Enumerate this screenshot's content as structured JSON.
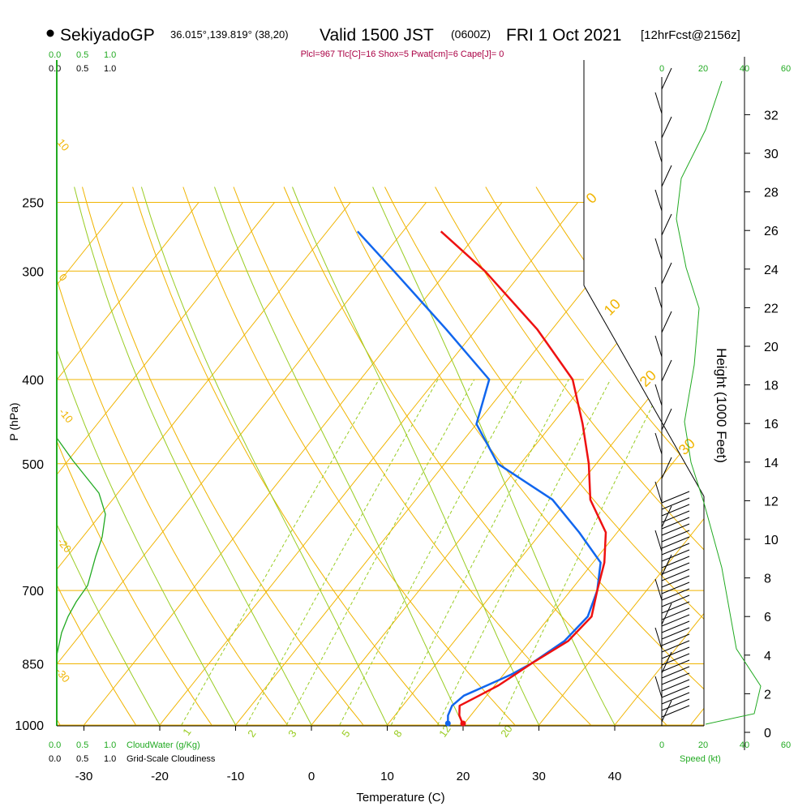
{
  "header": {
    "station": "SekiyadoGP",
    "coords": "36.015°,139.819° (38,20)",
    "valid": "Valid 1500 JST",
    "zulu": "(0600Z)",
    "date": "FRI 1 Oct 2021",
    "fcst": "[12hrFcst@2156z]",
    "indices": "Plcl=967 Tlc[C]=16 Shox=5 Pwat[cm]=6 Cape[J]= 0"
  },
  "colors": {
    "temperature": "#ee1111",
    "dewpoint": "#1166ee",
    "isotherm": "#f0b400",
    "dry_adiabat": "#f0b400",
    "moist_adiabat": "#99cc22",
    "mixing_ratio": "#99cc22",
    "cloud": "#22aa22",
    "indices": "#aa0044",
    "wind": "#000000"
  },
  "chart_data": {
    "type": "skew-t",
    "xlabel": "Temperature (C)",
    "ylabel": "P (hPa)",
    "right_axis_label": "Height (1000 Feet)",
    "x_ticks": [
      "-30",
      "-20",
      "-10",
      "0",
      "10",
      "20",
      "30",
      "40"
    ],
    "x_tick_values": [
      -30,
      -20,
      -10,
      0,
      10,
      20,
      30,
      40
    ],
    "p_ticks": [
      "250",
      "300",
      "400",
      "500",
      "700",
      "850",
      "1000"
    ],
    "p_tick_values": [
      250,
      300,
      400,
      500,
      700,
      850,
      1000
    ],
    "height_ticks": [
      "0",
      "2",
      "4",
      "6",
      "8",
      "10",
      "12",
      "14",
      "16",
      "18",
      "20",
      "22",
      "24",
      "26",
      "28",
      "30",
      "32"
    ],
    "height_tick_values": [
      0,
      2,
      4,
      6,
      8,
      10,
      12,
      14,
      16,
      18,
      20,
      22,
      24,
      26,
      28,
      30,
      32
    ],
    "pressure_hpa": [
      1000,
      975,
      950,
      925,
      900,
      875,
      850,
      800,
      750,
      700,
      650,
      600,
      550,
      500,
      450,
      400,
      350,
      300,
      270
    ],
    "temperature_c": [
      20,
      18.5,
      17.5,
      19,
      20.5,
      21.5,
      22.5,
      25,
      25.5,
      23.5,
      21.5,
      18.5,
      13,
      9,
      4,
      -2,
      -12,
      -25,
      -35
    ],
    "dewpoint_c": [
      18,
      17,
      16.5,
      17,
      19,
      21,
      22.5,
      24.5,
      25,
      23.5,
      21,
      15,
      8,
      -3,
      -10,
      -13,
      -24,
      -37,
      -46
    ],
    "cloud_water_axis_top": [
      "0.0",
      "0.5",
      "1.0"
    ],
    "cloud_water_axis_bottom": [
      "0.0",
      "0.5",
      "1.0"
    ],
    "cloud_water_label": "CloudWater (g/Kg)",
    "cloudiness_axis": [
      "0.0",
      "0.5",
      "1.0"
    ],
    "cloudiness_label": "Grid-Scale Cloudiness",
    "wind_speed_ticks": [
      "0",
      "20",
      "40",
      "60"
    ],
    "wind_speed_label": "Speed (kt)",
    "mixing_ratio_labels": [
      "1",
      "2",
      "3",
      "5",
      "8",
      "12",
      "20"
    ],
    "dry_adiabat_labels": [
      "10",
      "0",
      "-10",
      "-20",
      "-30"
    ],
    "moist_adiabat_labels": [
      "0",
      "10",
      "20",
      "30"
    ]
  }
}
